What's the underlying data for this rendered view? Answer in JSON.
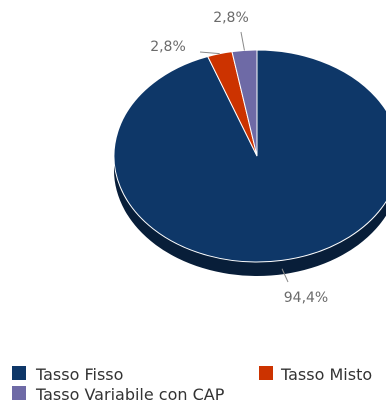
{
  "chart_data": {
    "type": "pie",
    "style": "3d",
    "categories": [
      "Tasso Fisso",
      "Tasso Misto",
      "Tasso Variabile con CAP"
    ],
    "values": [
      94.4,
      2.8,
      2.8
    ],
    "labels": [
      "94,4%",
      "2,8%",
      "2,8%"
    ],
    "colors": [
      "#0e3768",
      "#cc3300",
      "#6e6aa6"
    ],
    "legend": "bottom"
  }
}
